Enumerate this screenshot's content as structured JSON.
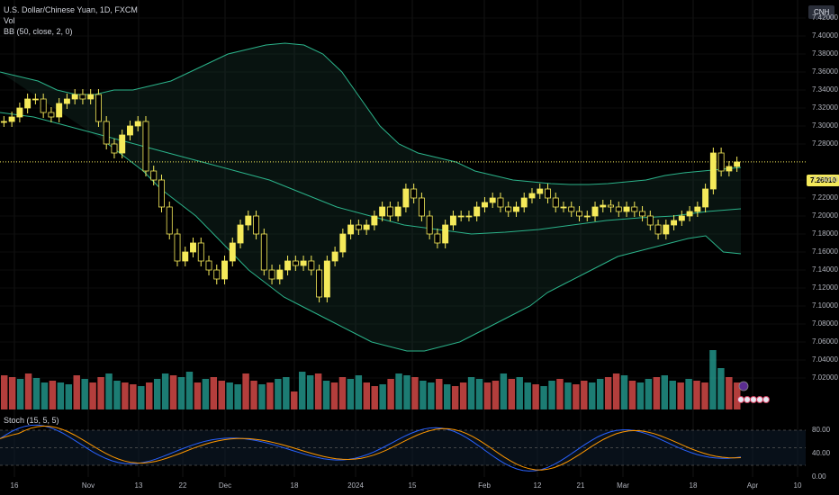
{
  "title": "U.S. Dollar/Chinese Yuan, 1D, FXCM",
  "indicators": {
    "vol": "Vol",
    "bb": "BB (50, close, 2, 0)",
    "stoch": "Stoch (15, 5, 5)"
  },
  "currency_badge": "CNH",
  "last_price_label": "7.26010",
  "colors": {
    "up": "#f5ea5a",
    "down": "#f5ea5a",
    "bb_band": "#2bb38a",
    "vol_up": "#26a69a",
    "vol_down": "#ef5350",
    "stoch_k": "#2962ff",
    "stoch_d": "#ff9800"
  },
  "chart_data": [
    {
      "type": "candlestick",
      "title": "U.S. Dollar/Chinese Yuan, 1D, FXCM",
      "x_tick_labels": [
        "16",
        "Nov",
        "13",
        "22",
        "Dec",
        "18",
        "2024",
        "15",
        "Feb",
        "12",
        "21",
        "Mar",
        "18",
        "Apr",
        "10"
      ],
      "y_tick_labels": [
        "7.42000",
        "7.40000",
        "7.38000",
        "7.36000",
        "7.34000",
        "7.32000",
        "7.30000",
        "7.28000",
        "7.24000",
        "7.22000",
        "7.20000",
        "7.18000",
        "7.16000",
        "7.14000",
        "7.12000",
        "7.10000",
        "7.08000",
        "7.06000",
        "7.04000",
        "7.02000"
      ],
      "ylim": [
        7.02,
        7.42
      ],
      "last_price": 7.2601,
      "close_series": [
        7.305,
        7.31,
        7.32,
        7.33,
        7.33,
        7.315,
        7.31,
        7.325,
        7.33,
        7.335,
        7.33,
        7.335,
        7.305,
        7.28,
        7.27,
        7.29,
        7.3,
        7.305,
        7.25,
        7.24,
        7.21,
        7.18,
        7.15,
        7.16,
        7.17,
        7.15,
        7.14,
        7.13,
        7.15,
        7.17,
        7.19,
        7.2,
        7.18,
        7.14,
        7.13,
        7.14,
        7.15,
        7.145,
        7.15,
        7.14,
        7.11,
        7.15,
        7.16,
        7.18,
        7.19,
        7.185,
        7.19,
        7.2,
        7.21,
        7.2,
        7.21,
        7.23,
        7.22,
        7.2,
        7.18,
        7.17,
        7.19,
        7.2,
        7.2,
        7.2,
        7.21,
        7.215,
        7.22,
        7.21,
        7.205,
        7.21,
        7.22,
        7.225,
        7.23,
        7.22,
        7.21,
        7.21,
        7.205,
        7.2,
        7.2,
        7.21,
        7.212,
        7.21,
        7.205,
        7.21,
        7.205,
        7.2,
        7.19,
        7.18,
        7.19,
        7.195,
        7.2,
        7.205,
        7.21,
        7.23,
        7.27,
        7.25,
        7.255,
        7.26
      ],
      "bb_upper": [
        7.36,
        7.355,
        7.35,
        7.34,
        7.335,
        7.335,
        7.34,
        7.34,
        7.345,
        7.35,
        7.36,
        7.37,
        7.38,
        7.385,
        7.39,
        7.392,
        7.39,
        7.38,
        7.36,
        7.33,
        7.3,
        7.28,
        7.27,
        7.265,
        7.26,
        7.25,
        7.245,
        7.24,
        7.238,
        7.236,
        7.235,
        7.235,
        7.236,
        7.238,
        7.24,
        7.245,
        7.248,
        7.25,
        7.252,
        7.254
      ],
      "bb_lower": [
        7.28,
        7.265,
        7.25,
        7.23,
        7.215,
        7.2,
        7.18,
        7.16,
        7.14,
        7.125,
        7.11,
        7.1,
        7.09,
        7.08,
        7.07,
        7.06,
        7.055,
        7.05,
        7.05,
        7.055,
        7.06,
        7.07,
        7.08,
        7.09,
        7.1,
        7.115,
        7.125,
        7.135,
        7.145,
        7.155,
        7.16,
        7.165,
        7.17,
        7.175,
        7.178,
        7.16,
        7.158
      ],
      "bb_basis": [
        7.315,
        7.31,
        7.3,
        7.29,
        7.28,
        7.27,
        7.26,
        7.25,
        7.24,
        7.225,
        7.21,
        7.2,
        7.19,
        7.185,
        7.18,
        7.182,
        7.185,
        7.19,
        7.195,
        7.198,
        7.2,
        7.205,
        7.208
      ],
      "volume": [
        38,
        36,
        34,
        40,
        35,
        30,
        32,
        30,
        28,
        38,
        34,
        30,
        36,
        40,
        32,
        30,
        28,
        26,
        30,
        34,
        40,
        38,
        36,
        42,
        30,
        34,
        36,
        32,
        30,
        28,
        40,
        32,
        28,
        30,
        34,
        36,
        20,
        42,
        38,
        40,
        32,
        30,
        36,
        34,
        38,
        30,
        26,
        28,
        34,
        40,
        38,
        36,
        32,
        30,
        34,
        28,
        26,
        30,
        36,
        34,
        30,
        32,
        40,
        34,
        36,
        30,
        28,
        26,
        32,
        34,
        30,
        28,
        32,
        30,
        34,
        36,
        40,
        38,
        32,
        30,
        34,
        36,
        38,
        32,
        30,
        34,
        32,
        30,
        66,
        46,
        36,
        30
      ],
      "stoch": {
        "y_tick_labels": [
          "80.00",
          "40.00",
          "0.00"
        ],
        "ylim": [
          0,
          100
        ]
      }
    }
  ]
}
